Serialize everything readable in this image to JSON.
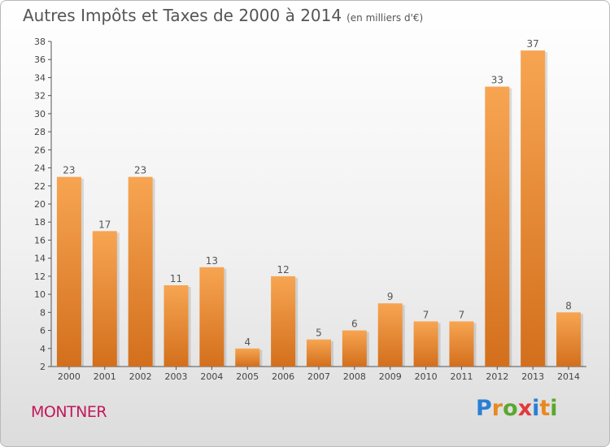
{
  "header": {
    "title": "Autres Impôts et Taxes de 2000 à 2014",
    "unit": "(en milliers d'€)"
  },
  "footer": {
    "commune": "MONTNER",
    "brand": "Proxiti",
    "brand_letters": [
      {
        "char": "P",
        "color": "#2a7fd4"
      },
      {
        "char": "r",
        "color": "#e8891f"
      },
      {
        "char": "o",
        "color": "#5aa82e"
      },
      {
        "char": "x",
        "color": "#e03a3a"
      },
      {
        "char": "i",
        "color": "#2a7fd4"
      },
      {
        "char": "t",
        "color": "#e8891f"
      },
      {
        "char": "i",
        "color": "#5aa82e"
      }
    ]
  },
  "colors": {
    "bar_light": "#f7a552",
    "bar_dark": "#d36f1c",
    "axis": "#555555",
    "grid": "#cfcfcf"
  },
  "chart_data": {
    "type": "bar",
    "title": "Autres Impôts et Taxes de 2000 à 2014",
    "subtitle": "(en milliers d'€)",
    "categories": [
      "2000",
      "2001",
      "2002",
      "2003",
      "2004",
      "2005",
      "2006",
      "2007",
      "2008",
      "2009",
      "2010",
      "2011",
      "2012",
      "2013",
      "2014"
    ],
    "values": [
      23,
      17,
      23,
      11,
      13,
      4,
      12,
      5,
      6,
      9,
      7,
      7,
      33,
      37,
      8
    ],
    "ylim": [
      2,
      38
    ],
    "yticks": [
      2,
      4,
      6,
      8,
      10,
      12,
      14,
      16,
      18,
      20,
      22,
      24,
      26,
      28,
      30,
      32,
      34,
      36,
      38
    ],
    "data_labels": true,
    "grid": false
  }
}
